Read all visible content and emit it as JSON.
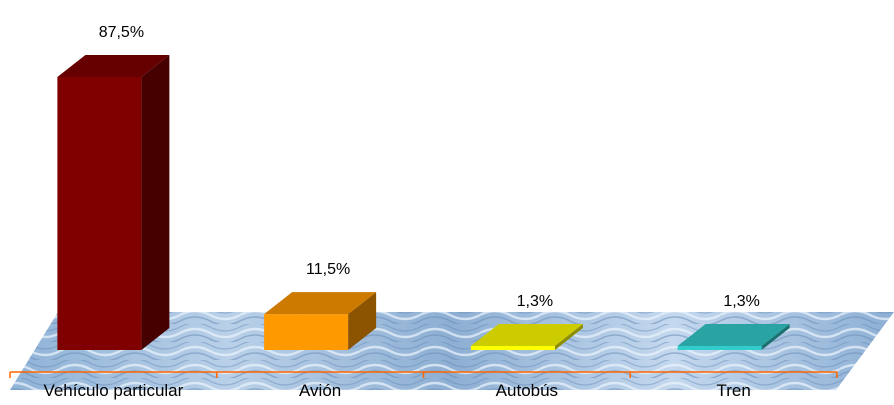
{
  "chart_data": {
    "type": "bar",
    "categories": [
      "Vehículo particular",
      "Avión",
      "Autobús",
      "Tren"
    ],
    "values": [
      87.5,
      11.5,
      1.3,
      1.3
    ],
    "data_labels": [
      "87,5%",
      "11,5%",
      "1,3%",
      "1,3%"
    ],
    "colors": [
      "#800000",
      "#ff9900",
      "#ffff00",
      "#33cccc"
    ],
    "ylim": [
      0,
      100
    ],
    "three_d": true,
    "floor": "textured-water"
  }
}
